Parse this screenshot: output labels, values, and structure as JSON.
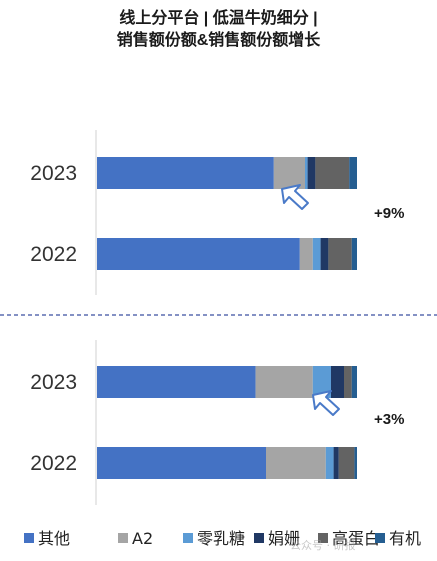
{
  "title_lines": [
    "线上分平台 | 低温牛奶细分 |",
    "销售额份额&销售额份额增长"
  ],
  "colors": {
    "其他": "#4472c4",
    "A2": "#a5a5a5",
    "零乳糖": "#5b9bd5",
    "娟姗": "#203864",
    "高蛋白": "#636363",
    "有机": "#255e91"
  },
  "chart_data": [
    {
      "type": "bar",
      "stacked": true,
      "orientation": "horizontal",
      "categories": [
        "2023",
        "2022"
      ],
      "series": [
        {
          "name": "其他",
          "values": [
            0.68,
            0.78
          ]
        },
        {
          "name": "A2",
          "values": [
            0.12,
            0.05
          ]
        },
        {
          "name": "零乳糖",
          "values": [
            0.01,
            0.03
          ]
        },
        {
          "name": "娟姗",
          "values": [
            0.03,
            0.03
          ]
        },
        {
          "name": "高蛋白",
          "values": [
            0.13,
            0.09
          ]
        },
        {
          "name": "有机",
          "values": [
            0.03,
            0.02
          ]
        }
      ],
      "annotation": "+9%",
      "grid": false
    },
    {
      "type": "bar",
      "stacked": true,
      "orientation": "horizontal",
      "categories": [
        "2023",
        "2022"
      ],
      "series": [
        {
          "name": "其他",
          "values": [
            0.61,
            0.65
          ]
        },
        {
          "name": "A2",
          "values": [
            0.22,
            0.23
          ]
        },
        {
          "name": "零乳糖",
          "values": [
            0.07,
            0.03
          ]
        },
        {
          "name": "娟姗",
          "values": [
            0.05,
            0.02
          ]
        },
        {
          "name": "高蛋白",
          "values": [
            0.03,
            0.06
          ]
        },
        {
          "name": "有机",
          "values": [
            0.02,
            0.01
          ]
        }
      ],
      "annotation": "+3%",
      "grid": false
    }
  ],
  "legend": [
    "其他",
    "A2",
    "零乳糖",
    "娟姗",
    "高蛋白",
    "有机"
  ],
  "watermark": "公众号 · 研报"
}
